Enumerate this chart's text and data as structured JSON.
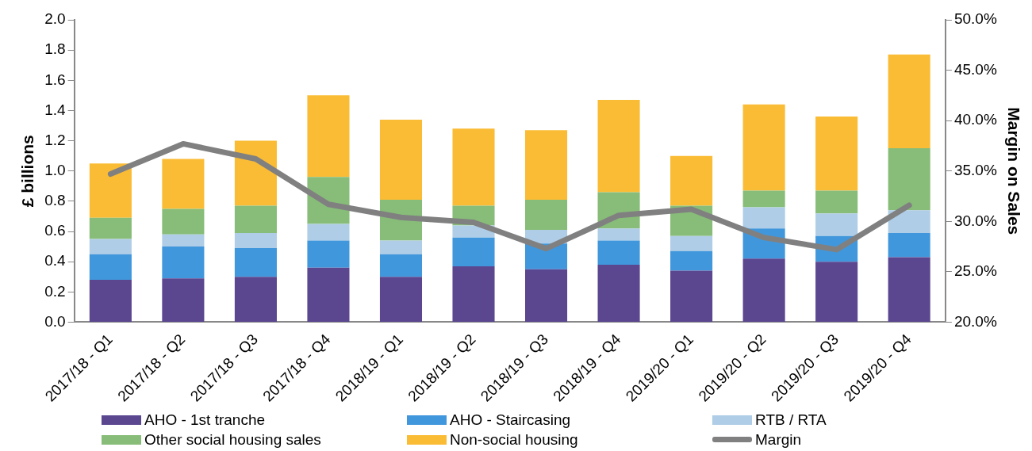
{
  "chart_data": {
    "type": "bar",
    "stacked": true,
    "ylabel": "£ billions",
    "y2label": "Margin on Sales",
    "categories": [
      "2017/18 - Q1",
      "2017/18 - Q2",
      "2017/18 - Q3",
      "2017/18 - Q4",
      "2018/19 - Q1",
      "2018/19 - Q2",
      "2018/19 - Q3",
      "2018/19 - Q4",
      "2019/20 - Q1",
      "2019/20 - Q2",
      "2019/20 - Q3",
      "2019/20 - Q4"
    ],
    "series": [
      {
        "name": "AHO - 1st tranche",
        "color": "#5b4690",
        "values": [
          0.28,
          0.29,
          0.3,
          0.36,
          0.3,
          0.37,
          0.35,
          0.38,
          0.34,
          0.42,
          0.4,
          0.43
        ]
      },
      {
        "name": "AHO - Staircasing",
        "color": "#4197dc",
        "values": [
          0.17,
          0.21,
          0.19,
          0.18,
          0.15,
          0.19,
          0.17,
          0.16,
          0.13,
          0.2,
          0.17,
          0.16
        ]
      },
      {
        "name": "RTB / RTA",
        "color": "#afcde6",
        "values": [
          0.1,
          0.08,
          0.1,
          0.11,
          0.09,
          0.08,
          0.09,
          0.08,
          0.1,
          0.14,
          0.15,
          0.15
        ]
      },
      {
        "name": "Other social housing sales",
        "color": "#87bd78",
        "values": [
          0.14,
          0.17,
          0.18,
          0.31,
          0.27,
          0.13,
          0.2,
          0.24,
          0.2,
          0.11,
          0.15,
          0.41
        ]
      },
      {
        "name": "Non-social housing",
        "color": "#fbbc35",
        "values": [
          0.36,
          0.33,
          0.43,
          0.54,
          0.53,
          0.51,
          0.46,
          0.61,
          0.33,
          0.57,
          0.49,
          0.62
        ]
      },
      {
        "name": "Margin",
        "type": "line",
        "axis": "y2",
        "color": "#808080",
        "values": [
          34.7,
          37.7,
          36.2,
          31.7,
          30.4,
          29.9,
          27.3,
          30.6,
          31.2,
          28.4,
          27.2,
          31.6
        ]
      }
    ],
    "ylim": [
      0,
      2
    ],
    "yticks": [
      {
        "value": 0,
        "label": "0.0"
      },
      {
        "value": 0.2,
        "label": "0.2"
      },
      {
        "value": 0.4,
        "label": "0.4"
      },
      {
        "value": 0.6,
        "label": "0.6"
      },
      {
        "value": 0.8,
        "label": "0.8"
      },
      {
        "value": 1,
        "label": "1.0"
      },
      {
        "value": 1.2,
        "label": "1.2"
      },
      {
        "value": 1.4,
        "label": "1.4"
      },
      {
        "value": 1.6,
        "label": "1.6"
      },
      {
        "value": 1.8,
        "label": "1.8"
      },
      {
        "value": 2,
        "label": "2.0"
      }
    ],
    "y2lim": [
      20,
      50
    ],
    "y2ticks": [
      {
        "value": 20,
        "label": "20.0%"
      },
      {
        "value": 25,
        "label": "25.0%"
      },
      {
        "value": 30,
        "label": "30.0%"
      },
      {
        "value": 35,
        "label": "35.0%"
      },
      {
        "value": 40,
        "label": "40.0%"
      },
      {
        "value": 45,
        "label": "45.0%"
      },
      {
        "value": 50,
        "label": "50.0%"
      }
    ],
    "grid": false,
    "legend": "bottom",
    "marker": "none",
    "line_style": "solid"
  }
}
